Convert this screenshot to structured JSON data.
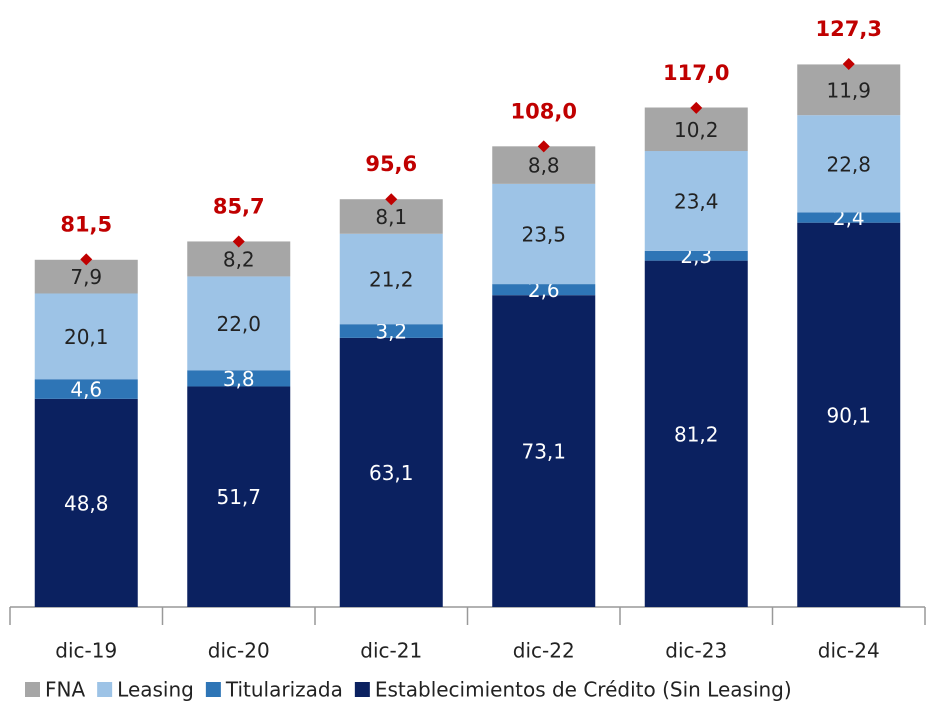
{
  "chart_data": {
    "type": "bar",
    "stacked": true,
    "categories": [
      "dic-19",
      "dic-20",
      "dic-21",
      "dic-22",
      "dic-23",
      "dic-24"
    ],
    "series": [
      {
        "name": "Establecimientos de Crédito (Sin Leasing)",
        "color": "#0b2160",
        "values": [
          48.8,
          51.7,
          63.1,
          73.1,
          81.2,
          90.1
        ],
        "value_labels": [
          "48,8",
          "51,7",
          "63,1",
          "73,1",
          "81,2",
          "90,1"
        ]
      },
      {
        "name": "Titularizada",
        "color": "#2e75b6",
        "values": [
          4.6,
          3.8,
          3.2,
          2.6,
          2.3,
          2.4
        ],
        "value_labels": [
          "4,6",
          "3,8",
          "3,2",
          "2,6",
          "2,3",
          "2,4"
        ]
      },
      {
        "name": "Leasing",
        "color": "#9dc3e6",
        "values": [
          20.1,
          22.0,
          21.2,
          23.5,
          23.4,
          22.8
        ],
        "value_labels": [
          "20,1",
          "22,0",
          "21,2",
          "23,5",
          "23,4",
          "22,8"
        ]
      },
      {
        "name": "FNA",
        "color": "#a6a6a6",
        "values": [
          7.9,
          8.2,
          8.1,
          8.8,
          10.2,
          11.9
        ],
        "value_labels": [
          "7,9",
          "8,2",
          "8,1",
          "8,8",
          "10,2",
          "11,9"
        ]
      }
    ],
    "totals": {
      "color": "#c00000",
      "values": [
        81.5,
        85.7,
        95.6,
        108.0,
        117.0,
        127.3
      ],
      "value_labels": [
        "81,5",
        "85,7",
        "95,6",
        "108,0",
        "117,0",
        "127,3"
      ]
    }
  }
}
